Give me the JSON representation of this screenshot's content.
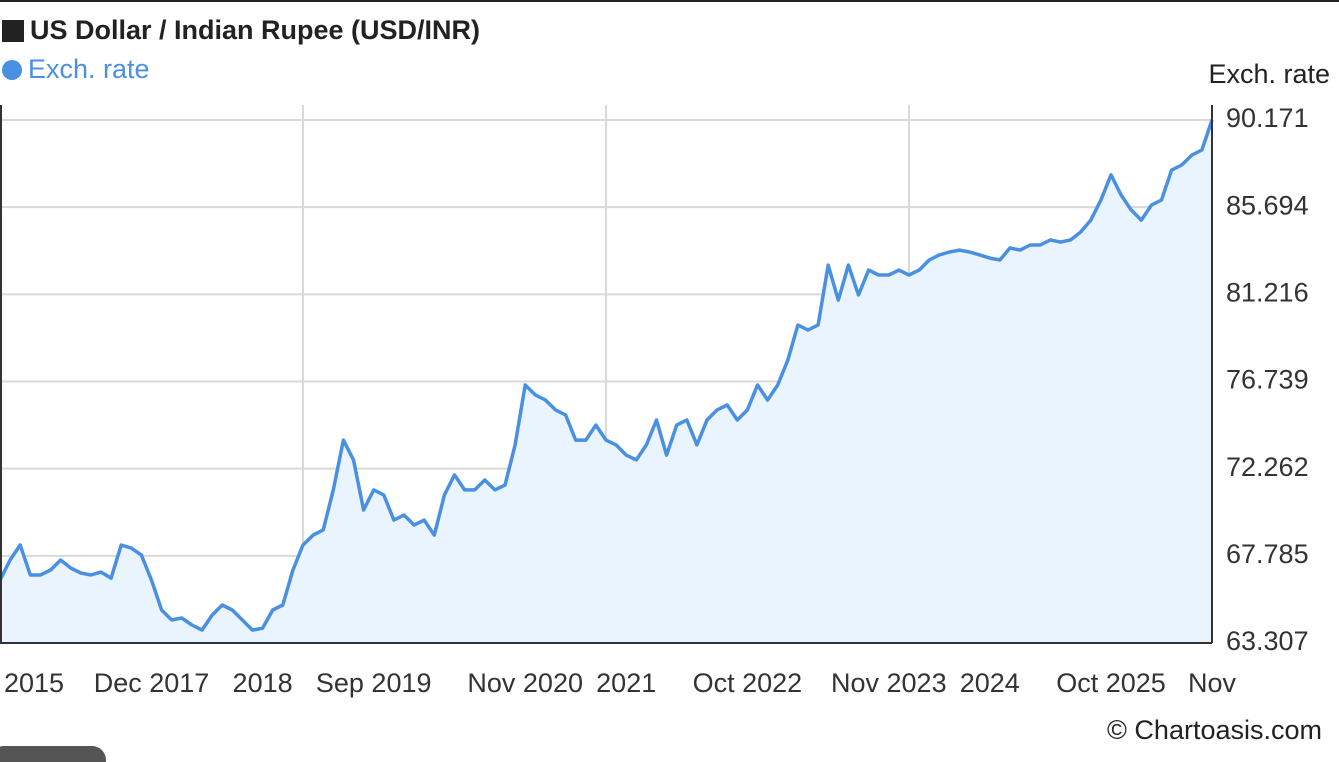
{
  "chart_data": {
    "type": "line",
    "title": "US Dollar / Indian Rupee (USD/INR)",
    "y_label": "Exch. rate",
    "source": "© Chartoasis.com",
    "categories": [
      null,
      null,
      null,
      "2015",
      null,
      null,
      null,
      null,
      null,
      null,
      null,
      null,
      null,
      null,
      null,
      "Dec 2017",
      null,
      null,
      null,
      null,
      null,
      null,
      null,
      null,
      null,
      null,
      "2018",
      null,
      null,
      null,
      null,
      null,
      null,
      null,
      null,
      null,
      null,
      "Sep 2019",
      null,
      null,
      null,
      null,
      null,
      null,
      null,
      null,
      null,
      null,
      null,
      null,
      null,
      null,
      "Nov 2020",
      null,
      null,
      null,
      null,
      null,
      null,
      null,
      null,
      null,
      "2021",
      null,
      null,
      null,
      null,
      null,
      null,
      null,
      null,
      null,
      null,
      null,
      "Oct 2022",
      null,
      null,
      null,
      null,
      null,
      null,
      null,
      null,
      null,
      null,
      null,
      null,
      null,
      "Nov 2023",
      null,
      null,
      null,
      null,
      null,
      null,
      null,
      null,
      null,
      "2024",
      null,
      null,
      null,
      null,
      null,
      null,
      null,
      null,
      null,
      null,
      null,
      "Oct 2025",
      null,
      null,
      null,
      null,
      null,
      null,
      null,
      null,
      null,
      "Nov"
    ],
    "series": [
      {
        "name": "Exch. rate",
        "color": "#4a90e2",
        "fill": "#eaf4fe",
        "values": [
          66.54,
          67.57,
          68.34,
          66.8,
          66.8,
          67.05,
          67.57,
          67.16,
          66.9,
          66.8,
          66.95,
          66.64,
          68.34,
          68.18,
          67.82,
          66.54,
          65.0,
          64.49,
          64.59,
          64.23,
          63.97,
          64.74,
          65.26,
          65.0,
          64.49,
          63.97,
          64.07,
          65.0,
          65.26,
          67.05,
          68.34,
          68.85,
          69.11,
          71.17,
          73.73,
          72.71,
          70.14,
          71.17,
          70.91,
          69.62,
          69.88,
          69.37,
          69.62,
          68.85,
          70.91,
          71.94,
          71.17,
          71.17,
          71.68,
          71.17,
          71.42,
          73.48,
          76.56,
          76.05,
          75.79,
          75.28,
          75.02,
          73.73,
          73.73,
          74.5,
          73.73,
          73.48,
          72.96,
          72.71,
          73.48,
          74.76,
          72.96,
          74.5,
          74.76,
          73.48,
          74.76,
          75.28,
          75.53,
          74.76,
          75.28,
          76.56,
          75.79,
          76.56,
          77.84,
          79.64,
          79.38,
          79.64,
          82.72,
          80.92,
          82.72,
          81.18,
          82.46,
          82.21,
          82.21,
          82.46,
          82.21,
          82.46,
          82.98,
          83.24,
          83.39,
          83.49,
          83.39,
          83.24,
          83.08,
          82.98,
          83.6,
          83.49,
          83.75,
          83.75,
          84.01,
          83.9,
          84.01,
          84.42,
          85.03,
          86.06,
          87.35,
          86.32,
          85.55,
          85.03,
          85.8,
          86.06,
          87.6,
          87.86,
          88.37,
          88.63,
          90.171
        ]
      }
    ],
    "ylim": [
      63.307,
      90.171
    ],
    "yticks": [
      63.307,
      67.785,
      72.262,
      76.739,
      81.216,
      85.694,
      90.171
    ],
    "grid": true
  }
}
